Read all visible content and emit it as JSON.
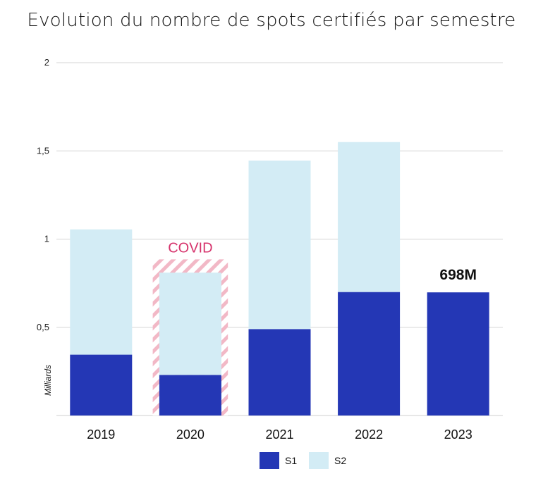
{
  "chart_data": {
    "type": "bar",
    "stacked": true,
    "title": "Evolution du nombre de spots certifiés par semestre",
    "ylabel": "Milliards",
    "xlabel": "",
    "categories": [
      "2019",
      "2020",
      "2021",
      "2022",
      "2023"
    ],
    "series": [
      {
        "name": "S1",
        "values": [
          0.345,
          0.23,
          0.49,
          0.7,
          0.698
        ],
        "color": "#2437b5"
      },
      {
        "name": "S2",
        "values": [
          0.71,
          0.58,
          0.955,
          0.85,
          0
        ],
        "color": "#d3ecf5"
      }
    ],
    "ylim": [
      0,
      2
    ],
    "yticks": [
      {
        "value": 0.5,
        "label": "0,5"
      },
      {
        "value": 1,
        "label": "1"
      },
      {
        "value": 1.5,
        "label": "1,5"
      },
      {
        "value": 2,
        "label": "2"
      }
    ],
    "grid": true,
    "legend": "bottom",
    "annotations": [
      {
        "category": "2020",
        "text": "COVID",
        "color": "#d6336c",
        "pattern": "diagonal-hatch-pink"
      },
      {
        "category": "2023",
        "text": "698M"
      }
    ]
  }
}
